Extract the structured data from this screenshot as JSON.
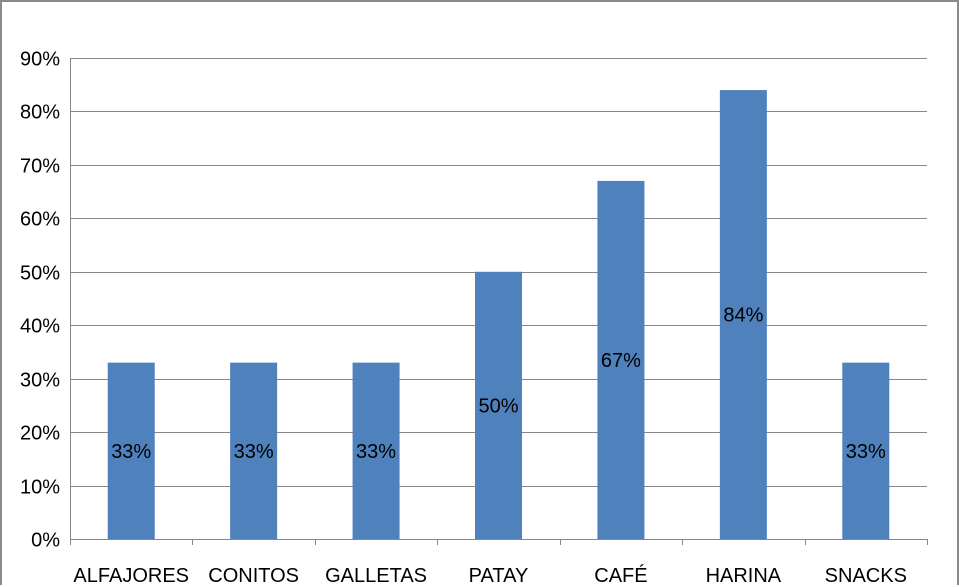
{
  "chart_data": {
    "type": "bar",
    "title": "",
    "xlabel": "",
    "ylabel": "",
    "categories": [
      "ALFAJORES",
      "CONITOS",
      "GALLETAS",
      "PATAY",
      "CAFÉ",
      "HARINA",
      "SNACKS"
    ],
    "values": [
      33,
      33,
      33,
      50,
      67,
      84,
      33
    ],
    "data_labels": [
      "33%",
      "33%",
      "33%",
      "50%",
      "67%",
      "84%",
      "33%"
    ],
    "ylim": [
      0,
      90
    ],
    "y_ticks": [
      0,
      10,
      20,
      30,
      40,
      50,
      60,
      70,
      80,
      90
    ],
    "y_tick_labels": [
      "0%",
      "10%",
      "20%",
      "30%",
      "40%",
      "50%",
      "60%",
      "70%",
      "80%",
      "90%"
    ],
    "grid": true,
    "legend": "none",
    "bar_color": "#4f81bd",
    "grid_color": "#878787"
  }
}
